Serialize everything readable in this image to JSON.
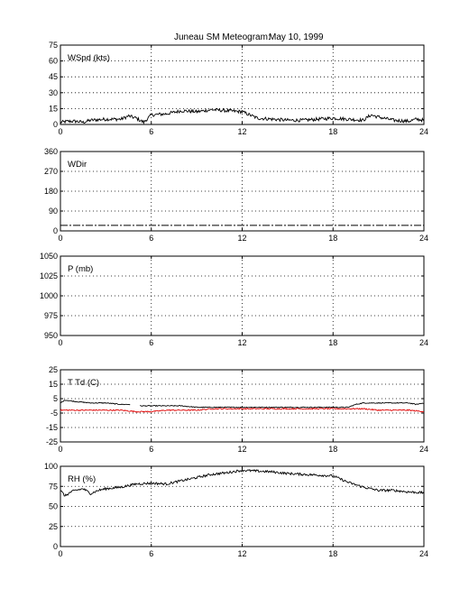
{
  "title_left": "Juneau SM Meteogram:",
  "title_right": "May 10, 1999",
  "chart_data": [
    {
      "type": "line",
      "label": "WSpd (kts)",
      "xlim": [
        0,
        24
      ],
      "ylim": [
        0,
        75
      ],
      "xticks": [
        0,
        6,
        12,
        18,
        24
      ],
      "yticks": [
        0,
        15,
        30,
        45,
        60,
        75
      ],
      "grid": true,
      "series": [
        {
          "color": "#000000",
          "noise": 1.6,
          "style": "solid",
          "points": [
            [
              0,
              2
            ],
            [
              0.5,
              3
            ],
            [
              1,
              3
            ],
            [
              1.5,
              2
            ],
            [
              2,
              4
            ],
            [
              3,
              5
            ],
            [
              4,
              5
            ],
            [
              4.5,
              8
            ],
            [
              5,
              6
            ],
            [
              5.5,
              2
            ],
            [
              6,
              9
            ],
            [
              7,
              10
            ],
            [
              8,
              13
            ],
            [
              9,
              12
            ],
            [
              10,
              14
            ],
            [
              11,
              13
            ],
            [
              12,
              12
            ],
            [
              13,
              6
            ],
            [
              14,
              5
            ],
            [
              15,
              4
            ],
            [
              16,
              4
            ],
            [
              17,
              5
            ],
            [
              18,
              6
            ],
            [
              19,
              5
            ],
            [
              20,
              4
            ],
            [
              20.5,
              9
            ],
            [
              21,
              7
            ],
            [
              22,
              4
            ],
            [
              23,
              3
            ],
            [
              23.5,
              5
            ],
            [
              24,
              4
            ]
          ]
        }
      ]
    },
    {
      "type": "line",
      "label": "WDir",
      "xlim": [
        0,
        24
      ],
      "ylim": [
        0,
        360
      ],
      "xticks": [
        0,
        6,
        12,
        18,
        24
      ],
      "yticks": [
        0,
        90,
        180,
        270,
        360
      ],
      "grid": true,
      "series": [
        {
          "color": "#000000",
          "noise": 0,
          "style": "dashdot",
          "points": [
            [
              0,
              25
            ],
            [
              24,
              25
            ]
          ]
        }
      ]
    },
    {
      "type": "line",
      "label": "P (mb)",
      "xlim": [
        0,
        24
      ],
      "ylim": [
        950,
        1050
      ],
      "xticks": [
        0,
        6,
        12,
        18,
        24
      ],
      "yticks": [
        950,
        975,
        1000,
        1025,
        1050
      ],
      "grid": true,
      "series": []
    },
    {
      "type": "line",
      "label": "T Td (C)",
      "xlim": [
        0,
        24
      ],
      "ylim": [
        -25,
        25
      ],
      "xticks": [
        0,
        6,
        12,
        18,
        24
      ],
      "yticks": [
        -25,
        -15,
        -5,
        5,
        15,
        25
      ],
      "grid": true,
      "series": [
        {
          "color": "#000000",
          "noise": 0.3,
          "style": "solid",
          "points": [
            [
              0,
              2
            ],
            [
              0.3,
              4
            ],
            [
              1,
              3
            ],
            [
              2,
              2
            ],
            [
              3,
              2
            ],
            [
              4,
              1
            ],
            [
              4.6,
              1
            ],
            [
              4.8,
              null
            ],
            [
              5,
              null
            ],
            [
              5.2,
              0
            ],
            [
              6,
              0
            ],
            [
              7,
              0
            ],
            [
              8,
              0
            ],
            [
              9,
              -1
            ],
            [
              10,
              -1
            ],
            [
              11,
              -1
            ],
            [
              12,
              -1
            ],
            [
              13,
              -1
            ],
            [
              14,
              -1
            ],
            [
              15,
              -1
            ],
            [
              16,
              -1
            ],
            [
              17,
              -1
            ],
            [
              18,
              -1
            ],
            [
              19,
              -1
            ],
            [
              19.5,
              1
            ],
            [
              20,
              2
            ],
            [
              21,
              2
            ],
            [
              22,
              2
            ],
            [
              23,
              2
            ],
            [
              23.5,
              1
            ],
            [
              24,
              2
            ]
          ]
        },
        {
          "color": "#e00000",
          "noise": 0.4,
          "style": "solid",
          "points": [
            [
              0,
              -3
            ],
            [
              1,
              -3
            ],
            [
              2,
              -3
            ],
            [
              3,
              -3
            ],
            [
              4,
              -3
            ],
            [
              5,
              -4
            ],
            [
              6,
              -4
            ],
            [
              7,
              -3
            ],
            [
              8,
              -3
            ],
            [
              9,
              -3
            ],
            [
              10,
              -2
            ],
            [
              11,
              -2
            ],
            [
              12,
              -2
            ],
            [
              13,
              -2
            ],
            [
              14,
              -2
            ],
            [
              15,
              -2
            ],
            [
              16,
              -2
            ],
            [
              17,
              -2
            ],
            [
              18,
              -2
            ],
            [
              19,
              -2
            ],
            [
              20,
              -2
            ],
            [
              21,
              -3
            ],
            [
              22,
              -3
            ],
            [
              23,
              -3
            ],
            [
              24,
              -4
            ]
          ]
        }
      ]
    },
    {
      "type": "line",
      "label": "RH (%)",
      "xlim": [
        0,
        24
      ],
      "ylim": [
        0,
        100
      ],
      "xticks": [
        0,
        6,
        12,
        18,
        24
      ],
      "yticks": [
        0,
        25,
        50,
        75,
        100
      ],
      "grid": true,
      "series": [
        {
          "color": "#000000",
          "noise": 1.5,
          "style": "solid",
          "points": [
            [
              0,
              70
            ],
            [
              0.3,
              63
            ],
            [
              0.7,
              68
            ],
            [
              1,
              70
            ],
            [
              1.5,
              72
            ],
            [
              2,
              66
            ],
            [
              2.5,
              70
            ],
            [
              3,
              72
            ],
            [
              4,
              74
            ],
            [
              5,
              78
            ],
            [
              6,
              79
            ],
            [
              7,
              78
            ],
            [
              8,
              82
            ],
            [
              9,
              86
            ],
            [
              10,
              90
            ],
            [
              11,
              92
            ],
            [
              12,
              95
            ],
            [
              13,
              94
            ],
            [
              14,
              93
            ],
            [
              15,
              91
            ],
            [
              16,
              90
            ],
            [
              17,
              89
            ],
            [
              18,
              88
            ],
            [
              19,
              80
            ],
            [
              20,
              74
            ],
            [
              21,
              70
            ],
            [
              22,
              70
            ],
            [
              23,
              68
            ],
            [
              24,
              67
            ]
          ]
        }
      ]
    }
  ]
}
